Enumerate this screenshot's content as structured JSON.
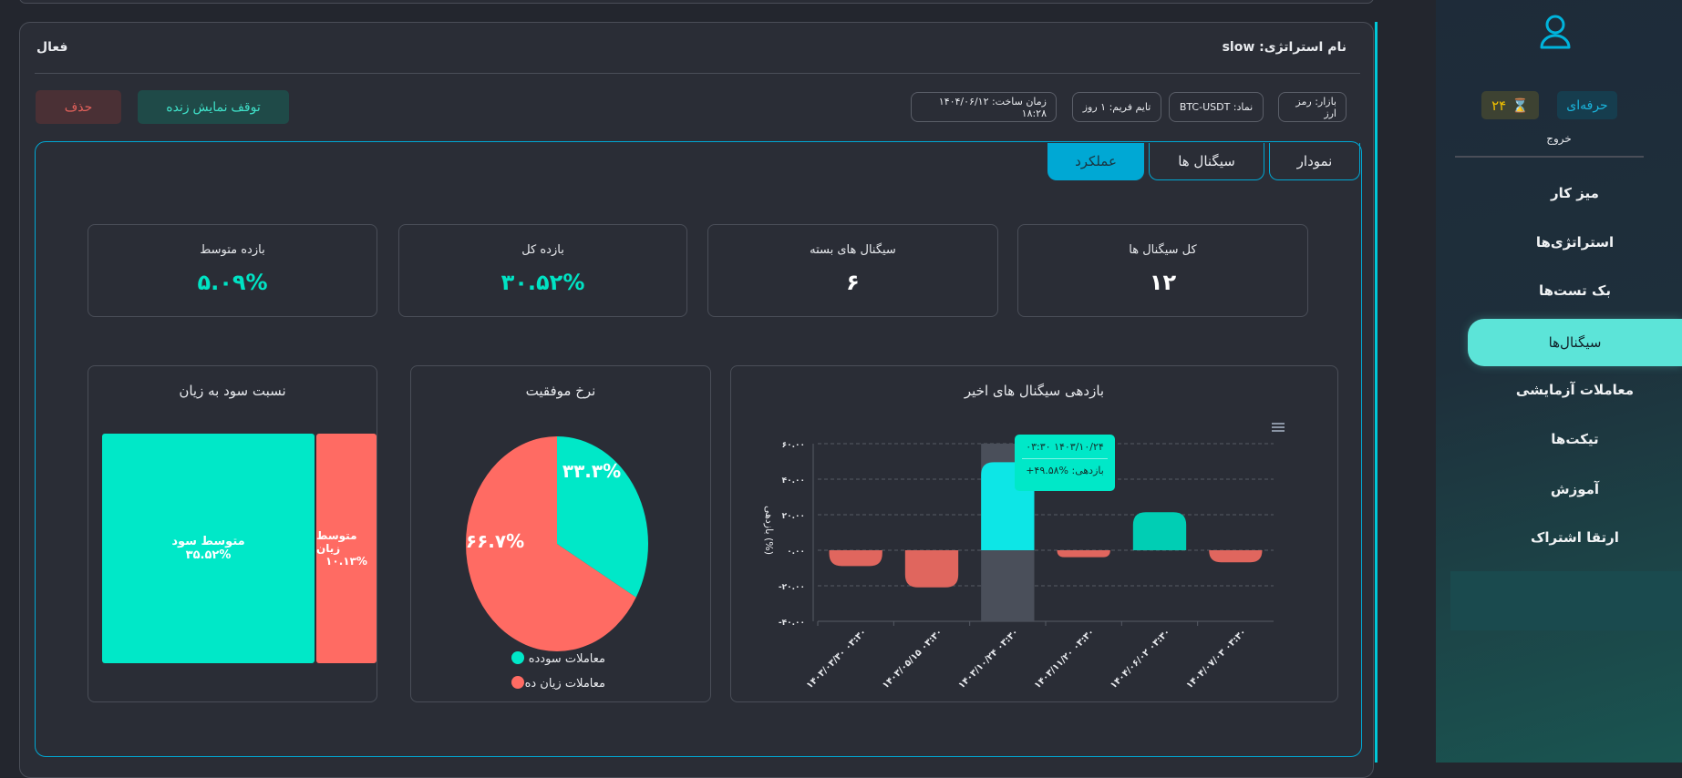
{
  "header": {
    "strategy_name": "نام استراتژی: slow",
    "status": "فعال"
  },
  "actions": {
    "delete": "حذف",
    "stop_live": "توقف نمایش زنده"
  },
  "chips": [
    "بازار: رمز ارز",
    "نماد: BTC-USDT",
    "تایم فریم: ۱ روز",
    "زمان ساخت: ۱۴۰۴/۰۶/۱۲ ۱۸:۲۸"
  ],
  "tabs": [
    {
      "label": "نمودار"
    },
    {
      "label": "سیگنال ها"
    },
    {
      "label": "عملکرد",
      "active": true
    }
  ],
  "stats": [
    {
      "title": "کل سیگنال ها",
      "value": "۱۲"
    },
    {
      "title": "سیگنال های بسته",
      "value": "۶"
    },
    {
      "title": "بازده کل",
      "value": "۳۰.۵۲%"
    },
    {
      "title": "بازده متوسط",
      "value": "۵.۰۹%"
    }
  ],
  "colors": {
    "profit": "#00e8c8",
    "loss": "#ff6b63",
    "accent": "#00a8d4",
    "highlight": "#0de6e6"
  },
  "sidebar": {
    "plan": "حرفه‌ای",
    "days": "۲۴",
    "logout": "خروج",
    "items": [
      "میز کار",
      "استراتژی‌ها",
      "بک تست‌ها",
      "سیگنال‌ها",
      "معاملات آزمایشی",
      "تیکت‌ها",
      "آموزش",
      "ارتقا اشتراک"
    ],
    "active_index": 3
  },
  "chart_data": [
    {
      "type": "bar",
      "title": "بازدهی سیگنال های اخیر",
      "ylabel": "بازدهی (%)",
      "ylim": [
        -40,
        60
      ],
      "yticks": [
        "-۴۰.۰۰",
        "-۲۰.۰۰",
        "۰.۰۰",
        "۲۰.۰۰",
        "۴۰.۰۰",
        "۶۰.۰۰"
      ],
      "ytick_values": [
        -40,
        -20,
        0,
        20,
        40,
        60
      ],
      "categories": [
        "۱۴۰۳/۰۳/۳۰ ۰۳:۳۰",
        "۱۴۰۳/۰۵/۱۵ ۰۳:۳۰",
        "۱۴۰۳/۱۰/۲۴ ۰۳:۳۰",
        "۱۴۰۳/۱۱/۲۰ ۰۳:۳۰",
        "۱۴۰۴/۰۶/۰۲ ۰۳:۳۰",
        "۱۴۰۴/۰۷/۰۳ ۰۳:۳۰"
      ],
      "values": [
        -8.9,
        -20.9,
        49.58,
        -3.9,
        21.44,
        -6.8
      ],
      "grid": true,
      "tooltip": {
        "index": 2,
        "title": "۱۴۰۳/۱۰/۲۴ ۰۳:۳۰",
        "text": "بازدهی: %۴۹.۵۸+"
      }
    },
    {
      "type": "pie",
      "title": "نرخ موفقیت",
      "series": [
        {
          "name": "معاملات سودده",
          "value": 33.3,
          "label": "۳۳.۳%"
        },
        {
          "name": "معاملات زیان ده",
          "value": 66.7,
          "label": "۶۶.۷%"
        }
      ],
      "legend": "bottom"
    },
    {
      "type": "treemap",
      "title": "نسبت سود به زیان",
      "series": [
        {
          "name": "متوسط سود",
          "value": 35.52,
          "label": "۳۵.۵۲%"
        },
        {
          "name": "متوسط زیان",
          "value": 10.13,
          "label": "۱۰.۱۳%"
        }
      ]
    }
  ]
}
